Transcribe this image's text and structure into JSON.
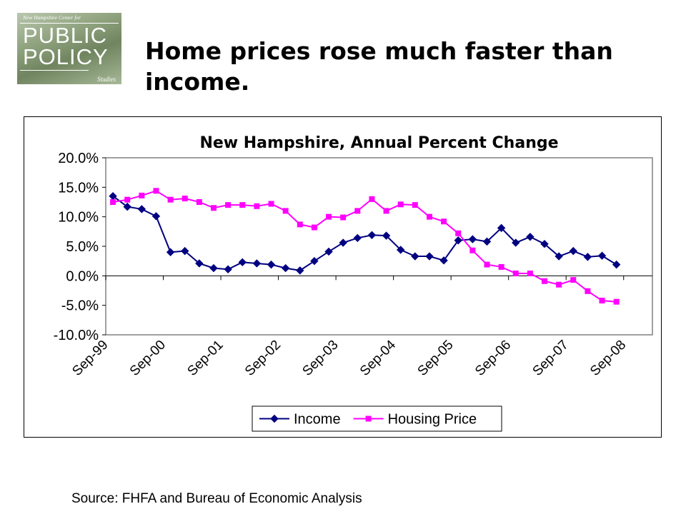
{
  "logo": {
    "top_text": "New Hampshire Center for",
    "line1": "PUBLIC",
    "line2": "POLICY",
    "bottom_text": "Studies"
  },
  "slide_title": "Home prices rose much faster than income.",
  "source": "Source: FHFA and Bureau of Economic Analysis",
  "colors": {
    "income": "#000080",
    "housing": "#ff00ff",
    "plot_border": "#808080"
  },
  "chart_data": {
    "type": "line",
    "title": "New Hampshire, Annual Percent Change",
    "xlabel": "",
    "ylabel": "",
    "ylim": [
      -10,
      20
    ],
    "y_ticks": [
      20,
      15,
      10,
      5,
      0,
      -5,
      -10
    ],
    "y_tick_labels": [
      "20.0%",
      "15.0%",
      "10.0%",
      "5.0%",
      "0.0%",
      "-5.0%",
      "-10.0%"
    ],
    "x_tick_labels": [
      "Sep-99",
      "Sep-00",
      "Sep-01",
      "Sep-02",
      "Sep-03",
      "Sep-04",
      "Sep-05",
      "Sep-06",
      "Sep-07",
      "Sep-08"
    ],
    "x": [
      "Dec-99",
      "Mar-00",
      "Jun-00",
      "Sep-00",
      "Dec-00",
      "Mar-01",
      "Jun-01",
      "Sep-01",
      "Dec-01",
      "Mar-02",
      "Jun-02",
      "Sep-02",
      "Dec-02",
      "Mar-03",
      "Jun-03",
      "Sep-03",
      "Dec-03",
      "Mar-04",
      "Jun-04",
      "Sep-04",
      "Dec-04",
      "Mar-05",
      "Jun-05",
      "Sep-05",
      "Dec-05",
      "Mar-06",
      "Jun-06",
      "Sep-06",
      "Dec-06",
      "Mar-07",
      "Jun-07",
      "Sep-07",
      "Dec-07",
      "Mar-08",
      "Jun-08",
      "Sep-08",
      "Dec-08",
      "Mar-09"
    ],
    "grid": "none",
    "legend_position": "bottom",
    "series": [
      {
        "name": "Income",
        "marker": "diamond",
        "values": [
          13.5,
          11.7,
          11.3,
          10.1,
          4.0,
          4.2,
          2.1,
          1.3,
          1.1,
          2.3,
          2.1,
          1.9,
          1.3,
          0.9,
          2.5,
          4.1,
          5.6,
          6.4,
          6.9,
          6.8,
          4.4,
          3.3,
          3.3,
          2.6,
          6.0,
          6.2,
          5.8,
          8.1,
          5.6,
          6.6,
          5.4,
          3.3,
          4.2,
          3.2,
          3.4,
          1.9,
          null,
          null
        ]
      },
      {
        "name": "Housing Price",
        "marker": "square",
        "values": [
          12.5,
          12.9,
          13.6,
          14.4,
          12.9,
          13.1,
          12.5,
          11.5,
          12.0,
          12.0,
          11.8,
          12.2,
          11.0,
          8.7,
          8.2,
          10.0,
          9.9,
          11.0,
          13.0,
          11.0,
          12.1,
          12.0,
          10.0,
          9.2,
          7.2,
          4.3,
          1.9,
          1.5,
          0.4,
          0.4,
          -0.9,
          -1.5,
          -0.7,
          -2.6,
          -4.2,
          -4.4,
          null,
          null
        ]
      }
    ]
  }
}
